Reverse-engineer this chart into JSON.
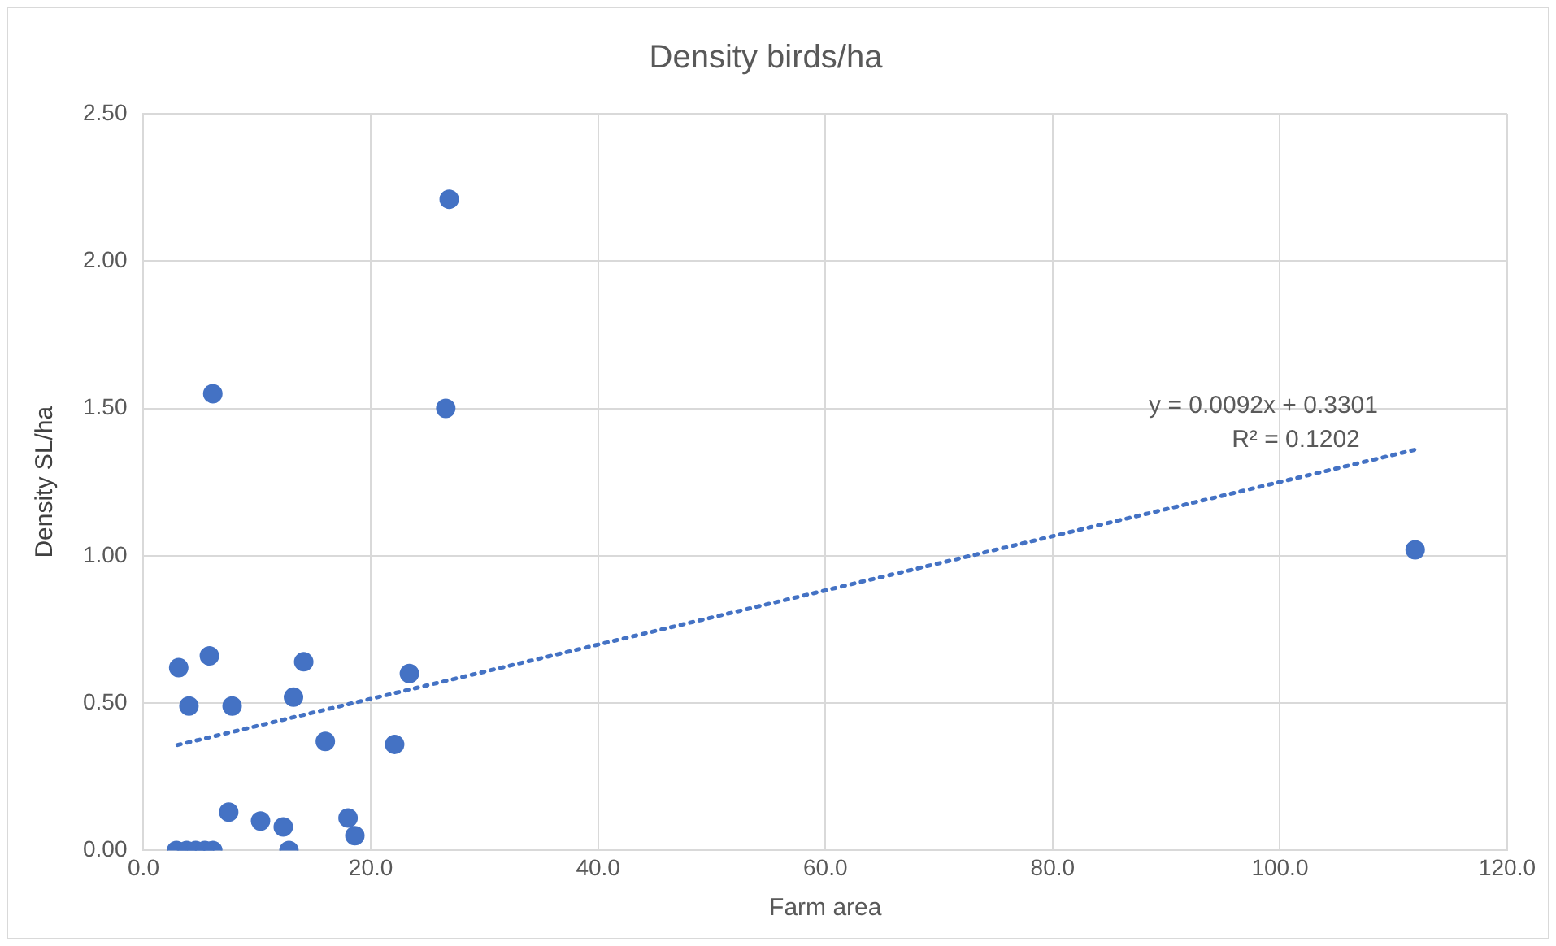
{
  "chart_data": {
    "type": "scatter",
    "title": "Density birds/ha",
    "xlabel": "Farm area",
    "ylabel": "Density SL/ha",
    "series": [
      {
        "color": "#4472c4",
        "x": [
          3.1,
          5.8,
          6.1,
          4.0,
          7.8,
          14.1,
          13.2,
          16.0,
          23.4,
          22.1,
          26.6,
          26.9,
          111.9,
          7.5,
          10.3,
          12.3,
          18.0,
          18.6,
          12.8,
          2.9,
          3.8,
          4.6,
          5.4,
          6.1
        ],
        "values": [
          0.62,
          0.66,
          1.55,
          0.49,
          0.49,
          0.64,
          0.52,
          0.37,
          0.6,
          0.36,
          1.5,
          2.21,
          1.02,
          0.13,
          0.1,
          0.08,
          0.11,
          0.05,
          0,
          0,
          0,
          0,
          0,
          0
        ],
        "marker": "circle"
      },
      {
        "type": "line",
        "color": "#4472c4",
        "x": [
          3.0,
          111.9
        ],
        "values": [
          0.358,
          1.36
        ],
        "line_style": "dotted",
        "marker": "none"
      }
    ],
    "annotations": [
      "y = 0.0092x + 0.3301",
      "R² = 0.1202"
    ],
    "xlim": [
      0,
      120
    ],
    "xticks": [
      {
        "value": 0,
        "label": "0.0"
      },
      {
        "value": 20,
        "label": "20.0"
      },
      {
        "value": 40,
        "label": "40.0"
      },
      {
        "value": 60,
        "label": "60.0"
      },
      {
        "value": 80,
        "label": "80.0"
      },
      {
        "value": 100,
        "label": "100.0"
      },
      {
        "value": 120,
        "label": "120.0"
      }
    ],
    "ylim": [
      0,
      2.5
    ],
    "yticks": [
      {
        "value": 0,
        "label": "0.00"
      },
      {
        "value": 0.5,
        "label": "0.50"
      },
      {
        "value": 1,
        "label": "1.00"
      },
      {
        "value": 1.5,
        "label": "1.50"
      },
      {
        "value": 2,
        "label": "2.00"
      },
      {
        "value": 2.5,
        "label": "2.50"
      }
    ],
    "grid": true,
    "legend": false
  }
}
